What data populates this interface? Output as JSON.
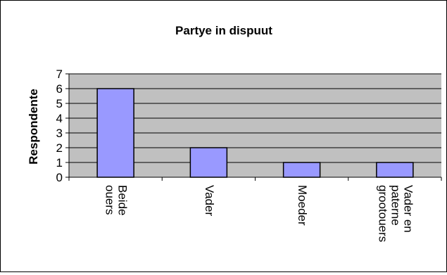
{
  "chart_data": {
    "type": "bar",
    "title": "Partye in dispuut",
    "xlabel": "",
    "ylabel": "Respondente",
    "categories": [
      [
        "Beide",
        "ouers"
      ],
      [
        "Vader"
      ],
      [
        "Moeder"
      ],
      [
        "Vader en",
        "paterne",
        "grootouers"
      ]
    ],
    "values": [
      6,
      2,
      1,
      1
    ],
    "ylim": [
      0,
      7
    ],
    "yticks": [
      0,
      1,
      2,
      3,
      4,
      5,
      6,
      7
    ],
    "grid": true,
    "legend": "none",
    "colors": {
      "plot_background": "#c0c0c0",
      "bar_fill": "#9999ff",
      "bar_stroke": "#000000",
      "grid": "#000000"
    }
  }
}
